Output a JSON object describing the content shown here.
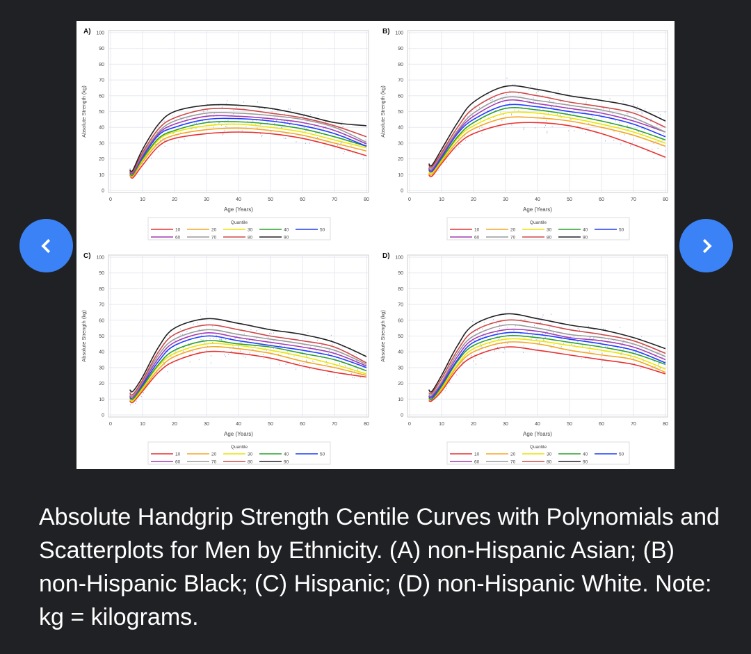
{
  "viewer": {
    "prev_icon": "chevron-left-icon",
    "next_icon": "chevron-right-icon",
    "accent_color": "#3b82f6",
    "caption": "Absolute Handgrip Strength Centile Curves with Polynomials and Scatterplots for Men by Ethnicity. (A) non-Hispanic Asian; (B) non-Hispanic Black; (C) Hispanic; (D) non-Hispanic White. Note: kg = kilograms."
  },
  "quantile_colors": {
    "10": "#e8312f",
    "20": "#f5a623",
    "30": "#ece400",
    "40": "#2ca02c",
    "50": "#1f3cff",
    "60": "#a23cb4",
    "70": "#9a9a9a",
    "80": "#cf4a4a",
    "90": "#222222"
  },
  "chart_data": [
    {
      "type": "line",
      "panel_label": "A)",
      "xlabel": "Age (Years)",
      "ylabel": "Absolute Strength (kg)",
      "xlim": [
        0,
        80
      ],
      "ylim": [
        0,
        100
      ],
      "xticks": [
        0,
        10,
        20,
        30,
        40,
        50,
        60,
        70,
        80
      ],
      "yticks": [
        0,
        10,
        20,
        30,
        40,
        50,
        60,
        70,
        80,
        90,
        100
      ],
      "grid": true,
      "scatter_points": true,
      "legend_title": "Quantile",
      "legend_placement": "bottom",
      "x": [
        6,
        7,
        10,
        15,
        20,
        30,
        40,
        50,
        60,
        70,
        80
      ],
      "series": [
        {
          "name": "10",
          "values": [
            10,
            8,
            16,
            28,
            33,
            36,
            37,
            36,
            33,
            28,
            22
          ]
        },
        {
          "name": "20",
          "values": [
            10,
            9,
            18,
            30,
            35,
            38.5,
            39.5,
            38,
            35,
            30,
            25
          ]
        },
        {
          "name": "30",
          "values": [
            11,
            10,
            19,
            32,
            37,
            41,
            42,
            40,
            37,
            32,
            27
          ]
        },
        {
          "name": "40",
          "values": [
            11,
            10,
            20,
            33,
            38,
            43,
            43.5,
            42,
            39,
            34,
            28
          ]
        },
        {
          "name": "50",
          "values": [
            12,
            11,
            21,
            35,
            40,
            45,
            45.5,
            44,
            41,
            36,
            28
          ]
        },
        {
          "name": "60",
          "values": [
            12,
            11,
            22,
            36,
            42,
            47,
            47,
            45.5,
            43,
            38,
            29.5
          ]
        },
        {
          "name": "70",
          "values": [
            13,
            12,
            23,
            37,
            44,
            49,
            49,
            47.5,
            45,
            40,
            30.5
          ]
        },
        {
          "name": "80",
          "values": [
            13,
            12,
            24,
            39,
            46,
            51.5,
            51.5,
            49,
            46,
            41,
            34
          ]
        },
        {
          "name": "90",
          "values": [
            13,
            13,
            26,
            42,
            50,
            54,
            54,
            52,
            48,
            43,
            41
          ]
        }
      ]
    },
    {
      "type": "line",
      "panel_label": "B)",
      "xlabel": "Age (Years)",
      "ylabel": "Absolute Strength (kg)",
      "xlim": [
        0,
        80
      ],
      "ylim": [
        0,
        100
      ],
      "xticks": [
        0,
        10,
        20,
        30,
        40,
        50,
        60,
        70,
        80
      ],
      "yticks": [
        0,
        10,
        20,
        30,
        40,
        50,
        60,
        70,
        80,
        90,
        100
      ],
      "grid": true,
      "scatter_points": true,
      "legend_title": "Quantile",
      "legend_placement": "bottom",
      "x": [
        6,
        7,
        10,
        15,
        20,
        30,
        40,
        50,
        60,
        70,
        80
      ],
      "series": [
        {
          "name": "10",
          "values": [
            10,
            9,
            17,
            29,
            36,
            42,
            43,
            41,
            36,
            29,
            21
          ]
        },
        {
          "name": "20",
          "values": [
            11,
            10,
            18,
            31,
            39,
            46,
            46,
            44,
            40,
            35,
            28
          ]
        },
        {
          "name": "30",
          "values": [
            12,
            11,
            19,
            33,
            41,
            49,
            49,
            46,
            42,
            37,
            30
          ]
        },
        {
          "name": "40",
          "values": [
            13,
            12,
            20,
            34,
            43,
            52,
            51,
            48,
            44,
            39,
            32
          ]
        },
        {
          "name": "50",
          "values": [
            14,
            12,
            21,
            36,
            45,
            54,
            53,
            50,
            47,
            42,
            34
          ]
        },
        {
          "name": "60",
          "values": [
            14,
            13,
            22,
            37,
            47,
            57,
            55,
            52,
            49,
            44,
            37
          ]
        },
        {
          "name": "70",
          "values": [
            15,
            14,
            23,
            38,
            49,
            59,
            57,
            54,
            51,
            46,
            37
          ]
        },
        {
          "name": "80",
          "values": [
            16,
            15,
            24,
            40,
            52,
            62,
            60,
            56,
            53,
            49,
            40
          ]
        },
        {
          "name": "90",
          "values": [
            17,
            16,
            26,
            43,
            56,
            66,
            64,
            60,
            57,
            53,
            44
          ]
        }
      ]
    },
    {
      "type": "line",
      "panel_label": "C)",
      "xlabel": "Age (Years)",
      "ylabel": "Absolute Strength (kg)",
      "xlim": [
        0,
        80
      ],
      "ylim": [
        0,
        100
      ],
      "xticks": [
        0,
        10,
        20,
        30,
        40,
        50,
        60,
        70,
        80
      ],
      "yticks": [
        0,
        10,
        20,
        30,
        40,
        50,
        60,
        70,
        80,
        90,
        100
      ],
      "grid": true,
      "scatter_points": true,
      "legend_title": "Quantile",
      "legend_placement": "bottom",
      "x": [
        6,
        7,
        10,
        15,
        20,
        30,
        40,
        50,
        60,
        70,
        80
      ],
      "series": [
        {
          "name": "10",
          "values": [
            9,
            8,
            15,
            27,
            34,
            40,
            39,
            36,
            31,
            27,
            24
          ]
        },
        {
          "name": "20",
          "values": [
            10,
            9,
            16,
            29,
            37,
            43,
            42,
            39,
            34,
            30,
            25
          ]
        },
        {
          "name": "30",
          "values": [
            10,
            9,
            17,
            31,
            39,
            45,
            44,
            41,
            37,
            32,
            26
          ]
        },
        {
          "name": "40",
          "values": [
            11,
            10,
            18,
            32,
            41,
            47,
            45,
            43,
            39,
            35,
            28
          ]
        },
        {
          "name": "50",
          "values": [
            11,
            11,
            19,
            34,
            44,
            50,
            47,
            44,
            41,
            37,
            30
          ]
        },
        {
          "name": "60",
          "values": [
            12,
            11,
            20,
            36,
            46,
            52,
            49,
            46,
            43,
            39,
            31
          ]
        },
        {
          "name": "70",
          "values": [
            13,
            12,
            21,
            38,
            48,
            54,
            51,
            48,
            45,
            41,
            32
          ]
        },
        {
          "name": "80",
          "values": [
            14,
            13,
            22,
            40,
            51,
            57,
            54,
            50,
            47,
            43,
            33
          ]
        },
        {
          "name": "90",
          "values": [
            16,
            15,
            24,
            43,
            55,
            61,
            58,
            54,
            51,
            46,
            37
          ]
        }
      ]
    },
    {
      "type": "line",
      "panel_label": "D)",
      "xlabel": "Age (Years)",
      "ylabel": "Absolute Strength (kg)",
      "xlim": [
        0,
        80
      ],
      "ylim": [
        0,
        100
      ],
      "xticks": [
        0,
        10,
        20,
        30,
        40,
        50,
        60,
        70,
        80
      ],
      "yticks": [
        0,
        10,
        20,
        30,
        40,
        50,
        60,
        70,
        80,
        90,
        100
      ],
      "grid": true,
      "scatter_points": true,
      "legend_title": "Quantile",
      "legend_placement": "bottom",
      "x": [
        6,
        7,
        10,
        15,
        20,
        30,
        40,
        50,
        60,
        70,
        80
      ],
      "series": [
        {
          "name": "10",
          "values": [
            9,
            9,
            15,
            29,
            37,
            43,
            41,
            38,
            35,
            32,
            26
          ]
        },
        {
          "name": "20",
          "values": [
            10,
            10,
            16,
            31,
            40,
            46,
            45,
            41,
            38,
            35,
            27
          ]
        },
        {
          "name": "30",
          "values": [
            10,
            10,
            17,
            32,
            42,
            48,
            47,
            44,
            41,
            37,
            29
          ]
        },
        {
          "name": "40",
          "values": [
            11,
            10,
            18,
            34,
            44,
            50,
            49,
            46,
            43,
            39,
            32
          ]
        },
        {
          "name": "50",
          "values": [
            12,
            11,
            19,
            35,
            46,
            52,
            51,
            48,
            45,
            41,
            33
          ]
        },
        {
          "name": "60",
          "values": [
            12,
            12,
            20,
            37,
            48,
            54,
            53,
            49,
            47,
            43,
            35
          ]
        },
        {
          "name": "70",
          "values": [
            13,
            13,
            21,
            39,
            50,
            57,
            55,
            51,
            49,
            45,
            37
          ]
        },
        {
          "name": "80",
          "values": [
            14,
            14,
            23,
            41,
            53,
            60,
            58,
            54,
            51,
            47,
            39
          ]
        },
        {
          "name": "90",
          "values": [
            16,
            15,
            25,
            44,
            57,
            64,
            61,
            57,
            54,
            49,
            42
          ]
        }
      ]
    }
  ]
}
